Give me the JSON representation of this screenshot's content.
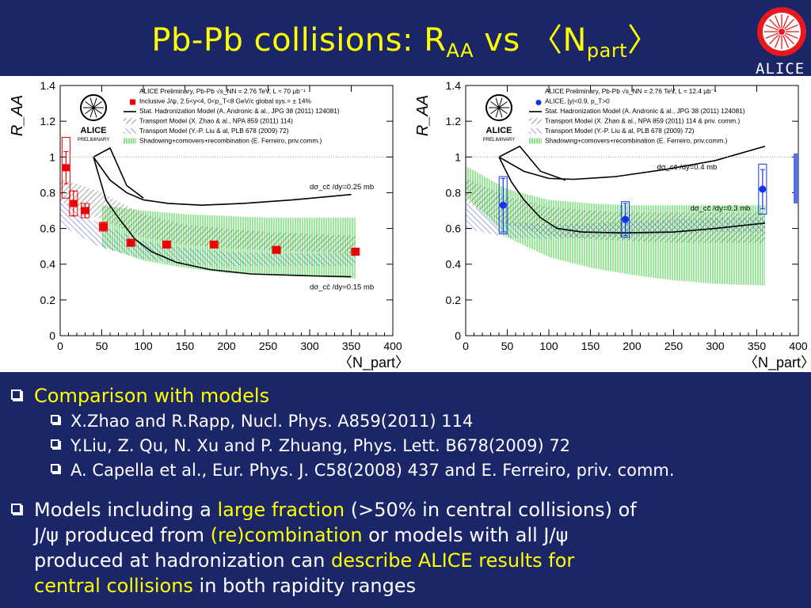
{
  "slide": {
    "title_main": "Pb-Pb collisions: R",
    "title_sub1": "AA",
    "title_mid": " vs 〈N",
    "title_sub2": "part",
    "title_end": "〉",
    "logo_text": "ALICE"
  },
  "colors": {
    "background": "#1a2668",
    "title": "#ffff00",
    "highlight": "#ffff00",
    "forward_points": "#ee0000",
    "mid_points": "#1133ee",
    "stat_hadronization": "#000000",
    "transport_zhao": "#555555",
    "transport_liu": "#3344cc",
    "shadowing_comovers": "#66dd66"
  },
  "bullets": {
    "comparison": "Comparison with models",
    "ref1": "X.Zhao and R.Rapp, Nucl. Phys. A859(2011) 114",
    "ref2": "Y.Liu, Z. Qu, N. Xu and P. Zhuang, Phys. Lett. B678(2009) 72",
    "ref3": "A. Capella et al., Eur. Phys. J. C58(2008) 437 and E. Ferreiro, priv. comm.",
    "models_1": "Models including a ",
    "models_2": "large fraction",
    "models_3": " (>50% in central collisions) of",
    "models_4": "J/ψ produced from ",
    "models_5": "(re)combination",
    "models_6": " or models with all J/ψ",
    "models_7": "produced at  hadronization can ",
    "models_8": "describe ALICE results for",
    "models_9": "central collisions",
    "models_10": " in both rapidity ranges"
  },
  "chart_data": [
    {
      "type": "scatter",
      "panel": "forward rapidity",
      "ylabel": "R_AA",
      "xlabel": "〈N_part〉",
      "xlim": [
        0,
        400
      ],
      "ylim": [
        0,
        1.4
      ],
      "x_ticks": [
        0,
        50,
        100,
        150,
        200,
        250,
        300,
        350,
        400
      ],
      "y_ticks": [
        0,
        0.2,
        0.4,
        0.6,
        0.8,
        1,
        1.2,
        1.4
      ],
      "badge": [
        "ALICE",
        "PRELIMINARY"
      ],
      "legend_placement": "top-right",
      "legend": [
        "ALICE Preliminary, Pb-Pb √s_NN = 2.76 TeV, L ≈ 70 μb⁻¹",
        "Inclusive J/ψ, 2.5<y<4, 0<p_T<8 GeV/c      global sys.= ± 14%",
        "Stat. Hadronization Model (A. Andronic & al., JPG 38 (2011) 124081)",
        "Transport Model (X. Zhao & al., NPA 859 (2011) 114)",
        "Transport Model (Y.-P. Liu & al, PLB 678 (2009) 72)",
        "Shadowing+comovers+recombination (E. Ferreiro, priv.comm.)"
      ],
      "annotations": [
        {
          "text": "dσ_cc̄ /dy=0.25 mb",
          "x": 300,
          "y": 0.82
        },
        {
          "text": "dσ_cc̄ /dy=0.15 mb",
          "x": 300,
          "y": 0.26
        }
      ],
      "points": [
        {
          "x": 7,
          "y": 0.94,
          "err": 0.09,
          "sys": 0.17
        },
        {
          "x": 16,
          "y": 0.74,
          "err": 0.07,
          "sys": 0.07
        },
        {
          "x": 30,
          "y": 0.7,
          "err": 0.04,
          "sys": 0.04
        },
        {
          "x": 52,
          "y": 0.61,
          "err": 0.02,
          "sys": 0.025
        },
        {
          "x": 85,
          "y": 0.52,
          "err": 0.01,
          "sys": 0.02
        },
        {
          "x": 128,
          "y": 0.51,
          "err": 0.01,
          "sys": 0.02
        },
        {
          "x": 185,
          "y": 0.51,
          "err": 0.01,
          "sys": 0.02
        },
        {
          "x": 260,
          "y": 0.48,
          "err": 0.01,
          "sys": 0.02
        },
        {
          "x": 355,
          "y": 0.47,
          "err": 0.01,
          "sys": 0.02
        }
      ],
      "models": {
        "stat_upper": [
          [
            40,
            1.0
          ],
          [
            60,
            0.87
          ],
          [
            80,
            0.8
          ],
          [
            100,
            0.76
          ],
          [
            130,
            0.74
          ],
          [
            170,
            0.73
          ],
          [
            220,
            0.74
          ],
          [
            280,
            0.76
          ],
          [
            350,
            0.79
          ]
        ],
        "stat_lower": [
          [
            40,
            1.0
          ],
          [
            55,
            0.76
          ],
          [
            70,
            0.66
          ],
          [
            90,
            0.54
          ],
          [
            110,
            0.47
          ],
          [
            140,
            0.41
          ],
          [
            180,
            0.37
          ],
          [
            230,
            0.345
          ],
          [
            300,
            0.335
          ],
          [
            350,
            0.33
          ]
        ],
        "stat_peak": [
          [
            40,
            1.0
          ],
          [
            60,
            1.05
          ],
          [
            80,
            0.84
          ],
          [
            100,
            0.77
          ]
        ],
        "zhao_upper": [
          [
            0,
            0.88
          ],
          [
            50,
            0.8
          ],
          [
            100,
            0.68
          ],
          [
            150,
            0.62
          ],
          [
            200,
            0.6
          ],
          [
            250,
            0.58
          ],
          [
            300,
            0.57
          ],
          [
            355,
            0.56
          ]
        ],
        "zhao_lower": [
          [
            0,
            0.75
          ],
          [
            50,
            0.65
          ],
          [
            100,
            0.55
          ],
          [
            150,
            0.51
          ],
          [
            200,
            0.49
          ],
          [
            250,
            0.48
          ],
          [
            300,
            0.47
          ],
          [
            355,
            0.46
          ]
        ],
        "liu_upper": [
          [
            0,
            0.76
          ],
          [
            50,
            0.62
          ],
          [
            100,
            0.53
          ],
          [
            150,
            0.49
          ],
          [
            200,
            0.47
          ],
          [
            250,
            0.46
          ],
          [
            300,
            0.46
          ],
          [
            355,
            0.46
          ]
        ],
        "liu_lower": [
          [
            0,
            0.62
          ],
          [
            50,
            0.49
          ],
          [
            100,
            0.43
          ],
          [
            150,
            0.4
          ],
          [
            200,
            0.39
          ],
          [
            250,
            0.39
          ],
          [
            300,
            0.39
          ],
          [
            355,
            0.39
          ]
        ],
        "ferreiro_upper": [
          [
            50,
            0.73
          ],
          [
            100,
            0.7
          ],
          [
            150,
            0.68
          ],
          [
            200,
            0.67
          ],
          [
            250,
            0.66
          ],
          [
            300,
            0.66
          ],
          [
            355,
            0.66
          ]
        ],
        "ferreiro_lower": [
          [
            50,
            0.5
          ],
          [
            100,
            0.42
          ],
          [
            150,
            0.38
          ],
          [
            200,
            0.35
          ],
          [
            250,
            0.34
          ],
          [
            300,
            0.33
          ],
          [
            355,
            0.32
          ]
        ]
      }
    },
    {
      "type": "scatter",
      "panel": "mid rapidity",
      "ylabel": "R_AA",
      "xlabel": "〈N_part〉",
      "xlim": [
        0,
        400
      ],
      "ylim": [
        0,
        1.4
      ],
      "x_ticks": [
        0,
        50,
        100,
        150,
        200,
        250,
        300,
        350,
        400
      ],
      "y_ticks": [
        0,
        0.2,
        0.4,
        0.6,
        0.8,
        1,
        1.2,
        1.4
      ],
      "badge": [
        "ALICE",
        "PRELIMINARY"
      ],
      "legend_placement": "top-right",
      "legend": [
        "ALICE Preliminary, Pb-Pb √s_NN = 2.76 TeV, L ≈ 12.4 μb⁻¹",
        "ALICE, |y|<0.9, p_T>0",
        "Stat. Hadronization Model (A. Andronic & al., JPG 38 (2011) 124081)",
        "Transport Model (X. Zhao & al., NPA 859 (2011) 114 & priv. comm.)",
        "Transport Model (Y.-P. Liu & al, PLB 678 (2009) 72)",
        "Shadowing+comovers+recombination (E. Ferreiro, priv.comm.)"
      ],
      "annotations": [
        {
          "text": "dσ_cc̄ /dy=0.4 mb",
          "x": 230,
          "y": 0.93
        },
        {
          "text": "dσ_cc̄ /dy=0.3 mb",
          "x": 270,
          "y": 0.7
        }
      ],
      "points": [
        {
          "x": 45,
          "y": 0.73,
          "err": 0.15,
          "sys": 0.16
        },
        {
          "x": 192,
          "y": 0.65,
          "err": 0.09,
          "sys": 0.1
        },
        {
          "x": 357,
          "y": 0.82,
          "err": 0.11,
          "sys": 0.14
        }
      ],
      "global_sys_box": {
        "ylow": 0.74,
        "yhigh": 1.02
      },
      "models": {
        "stat_upper": [
          [
            40,
            1.0
          ],
          [
            70,
            0.92
          ],
          [
            100,
            0.88
          ],
          [
            130,
            0.875
          ],
          [
            180,
            0.89
          ],
          [
            240,
            0.93
          ],
          [
            300,
            0.98
          ],
          [
            360,
            1.06
          ]
        ],
        "stat_lower": [
          [
            40,
            1.0
          ],
          [
            55,
            0.86
          ],
          [
            70,
            0.76
          ],
          [
            90,
            0.66
          ],
          [
            110,
            0.6
          ],
          [
            140,
            0.58
          ],
          [
            190,
            0.575
          ],
          [
            250,
            0.58
          ],
          [
            300,
            0.6
          ],
          [
            360,
            0.63
          ]
        ],
        "stat_peak": [
          [
            40,
            1.0
          ],
          [
            65,
            1.06
          ],
          [
            90,
            0.92
          ],
          [
            120,
            0.87
          ]
        ],
        "zhao_upper": [
          [
            0,
            0.88
          ],
          [
            50,
            0.78
          ],
          [
            100,
            0.72
          ],
          [
            150,
            0.7
          ],
          [
            200,
            0.69
          ],
          [
            250,
            0.69
          ],
          [
            300,
            0.69
          ],
          [
            360,
            0.69
          ]
        ],
        "zhao_lower": [
          [
            0,
            0.75
          ],
          [
            50,
            0.62
          ],
          [
            100,
            0.56
          ],
          [
            150,
            0.54
          ],
          [
            200,
            0.53
          ],
          [
            250,
            0.52
          ],
          [
            300,
            0.52
          ],
          [
            360,
            0.52
          ]
        ],
        "liu_upper": [
          [
            0,
            0.74
          ],
          [
            50,
            0.64
          ],
          [
            100,
            0.62
          ],
          [
            150,
            0.63
          ],
          [
            200,
            0.64
          ],
          [
            250,
            0.65
          ],
          [
            300,
            0.66
          ],
          [
            360,
            0.66
          ]
        ],
        "liu_lower": [
          [
            0,
            0.6
          ],
          [
            50,
            0.55
          ],
          [
            100,
            0.54
          ],
          [
            150,
            0.55
          ],
          [
            200,
            0.56
          ],
          [
            250,
            0.57
          ],
          [
            300,
            0.58
          ],
          [
            360,
            0.58
          ]
        ],
        "ferreiro_upper": [
          [
            0,
            0.95
          ],
          [
            50,
            0.82
          ],
          [
            100,
            0.76
          ],
          [
            150,
            0.74
          ],
          [
            200,
            0.73
          ],
          [
            250,
            0.73
          ],
          [
            300,
            0.73
          ],
          [
            360,
            0.73
          ]
        ],
        "ferreiro_lower": [
          [
            0,
            0.78
          ],
          [
            50,
            0.55
          ],
          [
            100,
            0.44
          ],
          [
            150,
            0.38
          ],
          [
            200,
            0.34
          ],
          [
            250,
            0.31
          ],
          [
            300,
            0.29
          ],
          [
            360,
            0.28
          ]
        ]
      }
    }
  ]
}
